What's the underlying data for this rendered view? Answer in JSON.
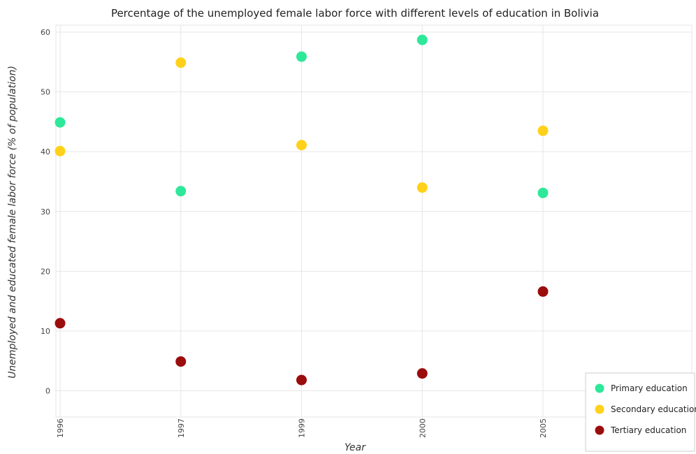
{
  "chart_data": {
    "type": "scatter",
    "title": "Percentage of the unemployed female labor force with different levels of education in Bolivia",
    "xlabel": "Year",
    "ylabel": "Unemployed and educated female labor force (% of population)",
    "categories": [
      "1996",
      "1997",
      "1999",
      "2000",
      "2005"
    ],
    "ylim": [
      0,
      62
    ],
    "yticks": [
      "0",
      "10",
      "20",
      "30",
      "40",
      "50",
      "60"
    ],
    "grid": true,
    "legend_position": "bottom-right",
    "series": [
      {
        "name": "Primary education",
        "color": "#2ee89a",
        "values": [
          44.9,
          33.4,
          55.9,
          58.7,
          33.1
        ]
      },
      {
        "name": "Secondary education",
        "color": "#ffd11a",
        "values": [
          40.1,
          54.9,
          41.1,
          34.0,
          43.5
        ]
      },
      {
        "name": "Tertiary education",
        "color": "#9b0c0c",
        "values": [
          11.3,
          4.9,
          1.8,
          2.9,
          16.6
        ]
      }
    ]
  }
}
